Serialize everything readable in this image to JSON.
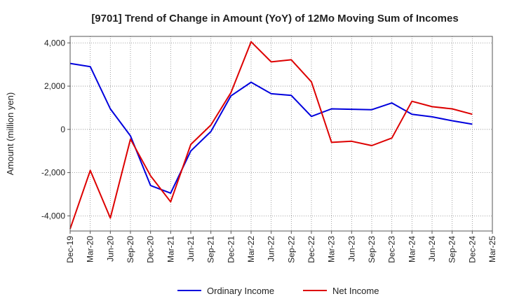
{
  "chart_data": {
    "type": "line",
    "title": "[9701]  Trend of Change in Amount (YoY) of 12Mo Moving Sum of Incomes",
    "xlabel": "",
    "ylabel": "Amount (million yen)",
    "ylim": [
      -4700,
      4300
    ],
    "yticks": [
      4000,
      2000,
      0,
      -2000,
      -4000
    ],
    "ytick_labels": [
      "4,000",
      "2,000",
      "0",
      "-2,000",
      "-4,000"
    ],
    "categories": [
      "Dec-19",
      "Mar-20",
      "Jun-20",
      "Sep-20",
      "Dec-20",
      "Mar-21",
      "Jun-21",
      "Sep-21",
      "Dec-21",
      "Mar-22",
      "Jun-22",
      "Sep-22",
      "Dec-22",
      "Mar-23",
      "Jun-23",
      "Sep-23",
      "Dec-23",
      "Mar-24",
      "Jun-24",
      "Sep-24",
      "Dec-24",
      "Mar-25"
    ],
    "grid": true,
    "legend_position": "bottom",
    "series": [
      {
        "name": "Ordinary Income",
        "color": "#0000dd",
        "values": [
          3050,
          2900,
          950,
          -300,
          -2600,
          -2950,
          -1000,
          -100,
          1550,
          2180,
          1650,
          1570,
          600,
          950,
          930,
          910,
          1220,
          700,
          580,
          400,
          240,
          null
        ]
      },
      {
        "name": "Net Income",
        "color": "#dd0000",
        "values": [
          -4600,
          -1900,
          -4100,
          -450,
          -2150,
          -3350,
          -700,
          200,
          1700,
          4050,
          3120,
          3220,
          2200,
          -600,
          -550,
          -750,
          -400,
          1300,
          1050,
          950,
          700,
          null
        ]
      }
    ]
  }
}
